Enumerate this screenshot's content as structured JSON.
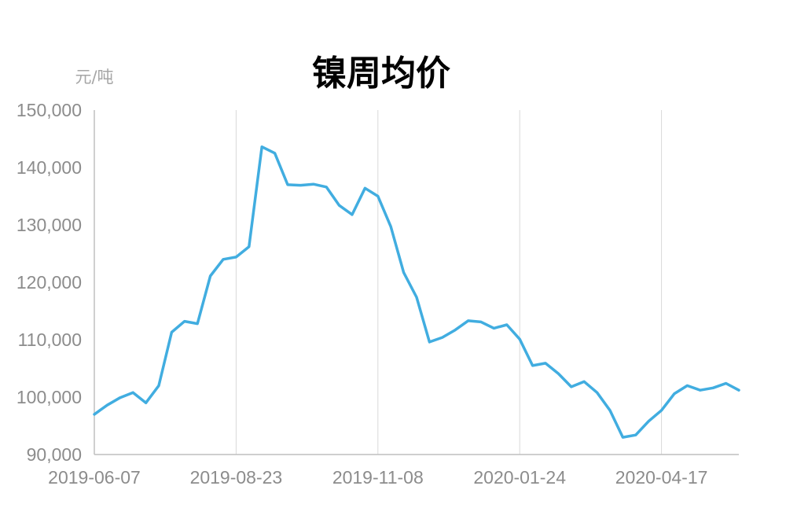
{
  "chart_data": {
    "type": "line",
    "title": "镍周均价",
    "ylabel": "元/吨",
    "xlabel": "",
    "ylim": [
      90000,
      150000
    ],
    "yticks": [
      "150,000",
      "140,000",
      "130,000",
      "120,000",
      "110,000",
      "100,000",
      "90,000"
    ],
    "xticks": [
      "2019-06-07",
      "2019-08-23",
      "2019-11-08",
      "2020-01-24",
      "2020-04-17"
    ],
    "grid": "vertical",
    "line_color": "#41ade0",
    "series": [
      {
        "values": [
          97000,
          98600,
          99900,
          100800,
          99000,
          102000,
          111300,
          113200,
          112800,
          121100,
          124000,
          124400,
          126200,
          143600,
          142500,
          137000,
          136900,
          137100,
          136600,
          133400,
          131800,
          136400,
          135000,
          129700,
          121700,
          117400,
          109600,
          110400,
          111700,
          113300,
          113100,
          112000,
          112600,
          110100,
          105500,
          105900,
          104100,
          101800,
          102700,
          100800,
          97700,
          93000,
          93400,
          95800,
          97700,
          100600,
          102000,
          101200,
          101600,
          102400,
          101200
        ]
      }
    ]
  }
}
